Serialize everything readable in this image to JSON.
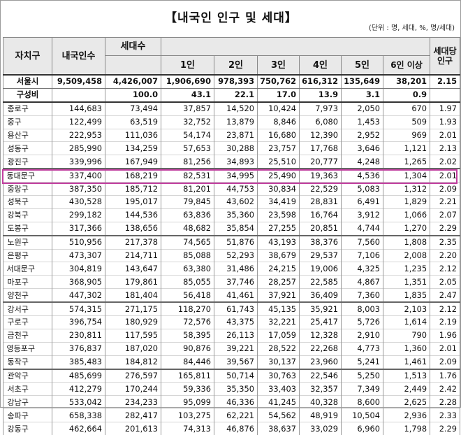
{
  "header": {
    "title": "【내국인 인구 및 세대】",
    "unit": "(단위 : 명, 세대, %, 명/세대)"
  },
  "columns": {
    "district": "자치구",
    "population": "내국인수",
    "households": "세대수",
    "one": "1인",
    "two": "2인",
    "three": "3인",
    "four": "4인",
    "five": "5인",
    "six": "6인 이상",
    "per_household": "세대당 인구"
  },
  "total": {
    "name": "서울시",
    "values": [
      "9,509,458",
      "4,426,007",
      "1,906,690",
      "978,393",
      "750,762",
      "616,312",
      "135,649",
      "38,201",
      "2.15"
    ]
  },
  "ratio": {
    "name": "구성비",
    "values": [
      "",
      "100.0",
      "43.1",
      "22.1",
      "17.0",
      "13.9",
      "3.1",
      "0.9",
      ""
    ]
  },
  "highlighted_row": "동대문구",
  "rows": [
    {
      "name": "종로구",
      "values": [
        "144,683",
        "73,494",
        "37,857",
        "14,520",
        "10,424",
        "7,973",
        "2,050",
        "670",
        "1.97"
      ]
    },
    {
      "name": "중구",
      "values": [
        "122,499",
        "63,519",
        "32,752",
        "13,879",
        "8,846",
        "6,080",
        "1,453",
        "509",
        "1.93"
      ]
    },
    {
      "name": "용산구",
      "values": [
        "222,953",
        "111,036",
        "54,174",
        "23,871",
        "16,680",
        "12,390",
        "2,952",
        "969",
        "2.01"
      ]
    },
    {
      "name": "성동구",
      "values": [
        "285,990",
        "134,259",
        "57,653",
        "30,288",
        "23,757",
        "17,768",
        "3,646",
        "1,121",
        "2.13"
      ]
    },
    {
      "name": "광진구",
      "values": [
        "339,996",
        "167,949",
        "81,256",
        "34,893",
        "25,510",
        "20,777",
        "4,248",
        "1,265",
        "2.02"
      ]
    },
    {
      "name": "동대문구",
      "values": [
        "337,400",
        "168,219",
        "82,531",
        "34,995",
        "25,490",
        "19,363",
        "4,536",
        "1,304",
        "2.01"
      ]
    },
    {
      "name": "중랑구",
      "values": [
        "387,350",
        "185,712",
        "81,201",
        "44,753",
        "30,834",
        "22,529",
        "5,083",
        "1,312",
        "2.09"
      ]
    },
    {
      "name": "성북구",
      "values": [
        "430,528",
        "195,017",
        "79,845",
        "43,602",
        "34,419",
        "28,831",
        "6,491",
        "1,829",
        "2.21"
      ]
    },
    {
      "name": "강북구",
      "values": [
        "299,182",
        "144,536",
        "63,836",
        "35,360",
        "23,598",
        "16,764",
        "3,912",
        "1,066",
        "2.07"
      ]
    },
    {
      "name": "도봉구",
      "values": [
        "317,366",
        "138,656",
        "48,682",
        "35,854",
        "27,255",
        "20,851",
        "4,744",
        "1,270",
        "2.29"
      ]
    },
    {
      "name": "노원구",
      "values": [
        "510,956",
        "217,378",
        "74,565",
        "51,876",
        "43,193",
        "38,376",
        "7,560",
        "1,808",
        "2.35"
      ]
    },
    {
      "name": "은평구",
      "values": [
        "473,307",
        "214,711",
        "85,088",
        "52,293",
        "38,679",
        "29,537",
        "7,106",
        "2,008",
        "2.20"
      ]
    },
    {
      "name": "서대문구",
      "values": [
        "304,819",
        "143,647",
        "63,380",
        "31,486",
        "24,215",
        "19,006",
        "4,325",
        "1,235",
        "2.12"
      ]
    },
    {
      "name": "마포구",
      "values": [
        "368,905",
        "179,861",
        "85,055",
        "37,746",
        "28,257",
        "22,585",
        "4,867",
        "1,351",
        "2.05"
      ]
    },
    {
      "name": "양천구",
      "values": [
        "447,302",
        "181,404",
        "56,418",
        "41,461",
        "37,921",
        "36,409",
        "7,360",
        "1,835",
        "2.47"
      ]
    },
    {
      "name": "강서구",
      "values": [
        "574,315",
        "271,175",
        "118,270",
        "61,743",
        "45,135",
        "35,921",
        "8,003",
        "2,103",
        "2.12"
      ]
    },
    {
      "name": "구로구",
      "values": [
        "396,754",
        "180,929",
        "72,576",
        "43,375",
        "32,221",
        "25,417",
        "5,726",
        "1,614",
        "2.19"
      ]
    },
    {
      "name": "금천구",
      "values": [
        "230,811",
        "117,595",
        "58,395",
        "26,113",
        "17,059",
        "12,328",
        "2,910",
        "790",
        "1.96"
      ]
    },
    {
      "name": "영등포구",
      "values": [
        "376,837",
        "187,020",
        "90,876",
        "39,221",
        "28,522",
        "22,268",
        "4,773",
        "1,360",
        "2.01"
      ]
    },
    {
      "name": "동작구",
      "values": [
        "385,483",
        "184,812",
        "84,446",
        "39,567",
        "30,137",
        "23,960",
        "5,241",
        "1,461",
        "2.09"
      ]
    },
    {
      "name": "관악구",
      "values": [
        "485,699",
        "276,597",
        "165,811",
        "50,714",
        "30,763",
        "22,546",
        "5,250",
        "1,513",
        "1.76"
      ]
    },
    {
      "name": "서초구",
      "values": [
        "412,279",
        "170,244",
        "59,336",
        "35,350",
        "33,403",
        "32,357",
        "7,349",
        "2,449",
        "2.42"
      ]
    },
    {
      "name": "강남구",
      "values": [
        "533,042",
        "234,233",
        "95,099",
        "46,336",
        "41,245",
        "40,328",
        "8,600",
        "2,625",
        "2.28"
      ]
    },
    {
      "name": "송파구",
      "values": [
        "658,338",
        "282,417",
        "103,275",
        "62,221",
        "54,562",
        "48,919",
        "10,504",
        "2,936",
        "2.33"
      ]
    },
    {
      "name": "강동구",
      "values": [
        "462,664",
        "201,613",
        "74,313",
        "46,876",
        "38,637",
        "33,029",
        "6,960",
        "1,798",
        "2.29"
      ]
    }
  ]
}
